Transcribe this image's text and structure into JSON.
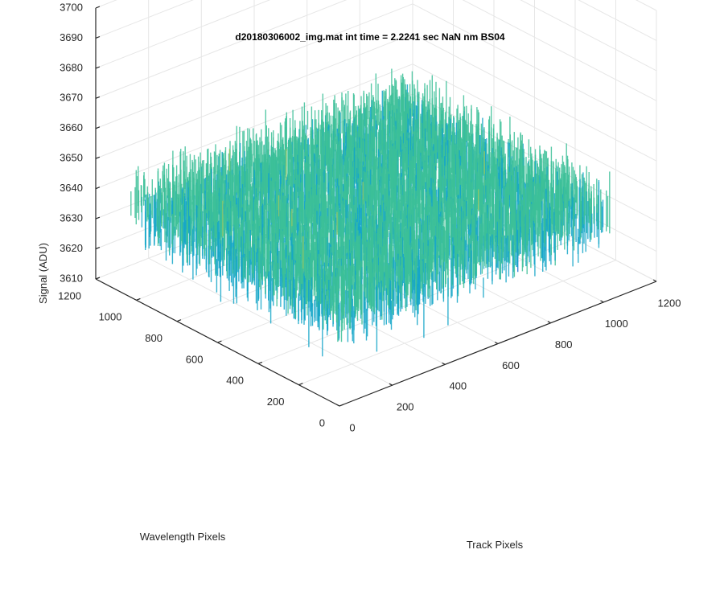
{
  "chart_data": {
    "type": "surface",
    "title": "d20180306002_img.mat int time = 2.2241 sec  NaN nm BS04",
    "xlabel": "Track Pixels",
    "ylabel": "Wavelength Pixels",
    "zlabel": "Signal (ADU)",
    "xlim": [
      0,
      1200
    ],
    "ylim": [
      0,
      1200
    ],
    "zlim": [
      3610,
      3700
    ],
    "x_ticks": [
      "0",
      "200",
      "400",
      "600",
      "800",
      "1000",
      "1200"
    ],
    "y_ticks": [
      "0",
      "200",
      "400",
      "600",
      "800",
      "1000",
      "1200"
    ],
    "z_ticks": [
      "3610",
      "3620",
      "3630",
      "3640",
      "3650",
      "3660",
      "3670",
      "3680",
      "3690",
      "3700"
    ],
    "data_extent": {
      "x": [
        1,
        1024
      ],
      "y": [
        1,
        1024
      ]
    },
    "signal_mean_approx": 3640,
    "signal_range_approx": [
      3615,
      3680
    ],
    "grid": true,
    "colormap": "parula",
    "colors": {
      "low": "#1f6fd6",
      "mid_low": "#14a6c8",
      "mid": "#3cbf98",
      "mid_high": "#96c864",
      "high": "#f0cf3c",
      "grid": "#e6e6e6",
      "axis": "#262626"
    }
  }
}
